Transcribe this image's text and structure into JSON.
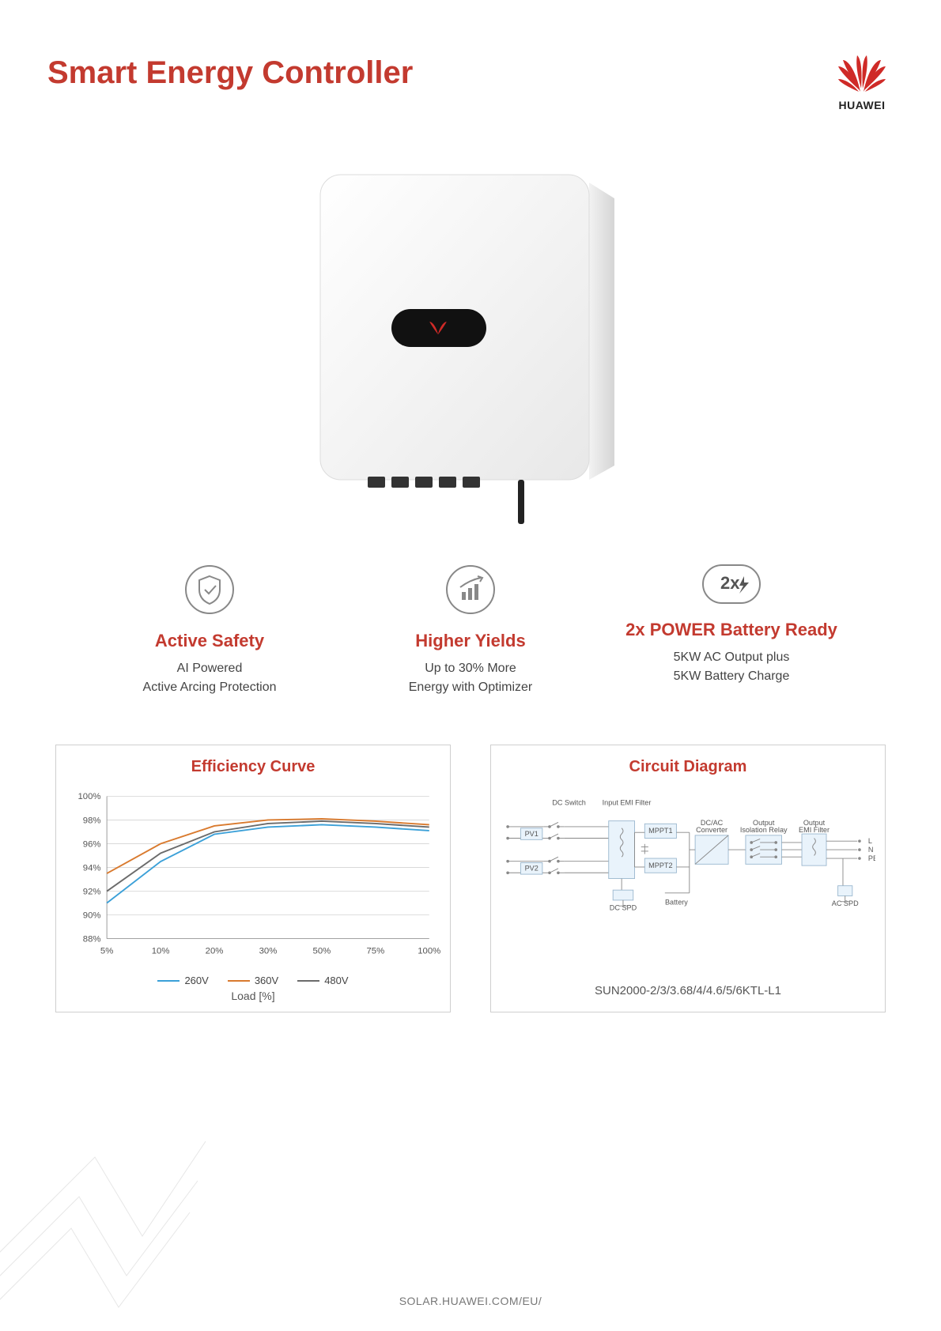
{
  "title": "Smart Energy Controller",
  "brand": {
    "name": "HUAWEI",
    "logo_color": "#cf2a27"
  },
  "features": [
    {
      "icon": "shield-check",
      "title": "Active Safety",
      "line1": "AI Powered",
      "line2": "Active Arcing Protection"
    },
    {
      "icon": "bars-up",
      "title": "Higher Yields",
      "line1": "Up to 30% More",
      "line2": "Energy with Optimizer"
    },
    {
      "icon": "2x-bolt",
      "title": "2x POWER Battery Ready",
      "line1": "5KW AC Output plus",
      "line2": "5KW Battery Charge"
    }
  ],
  "chart": {
    "title": "Efficiency Curve",
    "type": "line",
    "x_ticks": [
      "5%",
      "10%",
      "20%",
      "30%",
      "50%",
      "75%",
      "100%"
    ],
    "y_ticks": [
      "88%",
      "90%",
      "92%",
      "94%",
      "96%",
      "98%",
      "100%"
    ],
    "ylim": [
      88,
      100
    ],
    "x_label": "Load [%]",
    "grid_color": "#d9d9d9",
    "background": "#ffffff",
    "series": [
      {
        "name": "260V",
        "color": "#3ba0d8",
        "values": [
          91.0,
          94.5,
          96.8,
          97.4,
          97.6,
          97.4,
          97.1
        ]
      },
      {
        "name": "360V",
        "color": "#d97a2e",
        "values": [
          93.5,
          96.0,
          97.5,
          98.0,
          98.1,
          97.9,
          97.6
        ]
      },
      {
        "name": "480V",
        "color": "#6b6b6b",
        "values": [
          92.0,
          95.2,
          97.0,
          97.7,
          97.9,
          97.7,
          97.4
        ]
      }
    ]
  },
  "diagram": {
    "title": "Circuit Diagram",
    "model": "SUN2000-2/3/3.68/4/4.6/5/6KTL-L1",
    "box_stroke": "#9bb8cf",
    "box_fill": "#e9f3fb",
    "text_color": "#555555",
    "labels": {
      "dc_switch": "DC Switch",
      "input_emi": "Input EMI Filter",
      "pv1": "PV1",
      "pv2": "PV2",
      "mppt1": "MPPT1",
      "mppt2": "MPPT2",
      "dcac": "DC/AC Converter",
      "out_relay": "Output Isolation Relay",
      "out_emi": "Output EMI Filter",
      "battery": "Battery",
      "dc_spd": "DC SPD",
      "ac_spd": "AC SPD",
      "L": "L",
      "N": "N",
      "PE": "PE"
    }
  },
  "footer": "SOLAR.HUAWEI.COM/EU/",
  "colors": {
    "accent": "#c33a2f",
    "text": "#444444"
  }
}
